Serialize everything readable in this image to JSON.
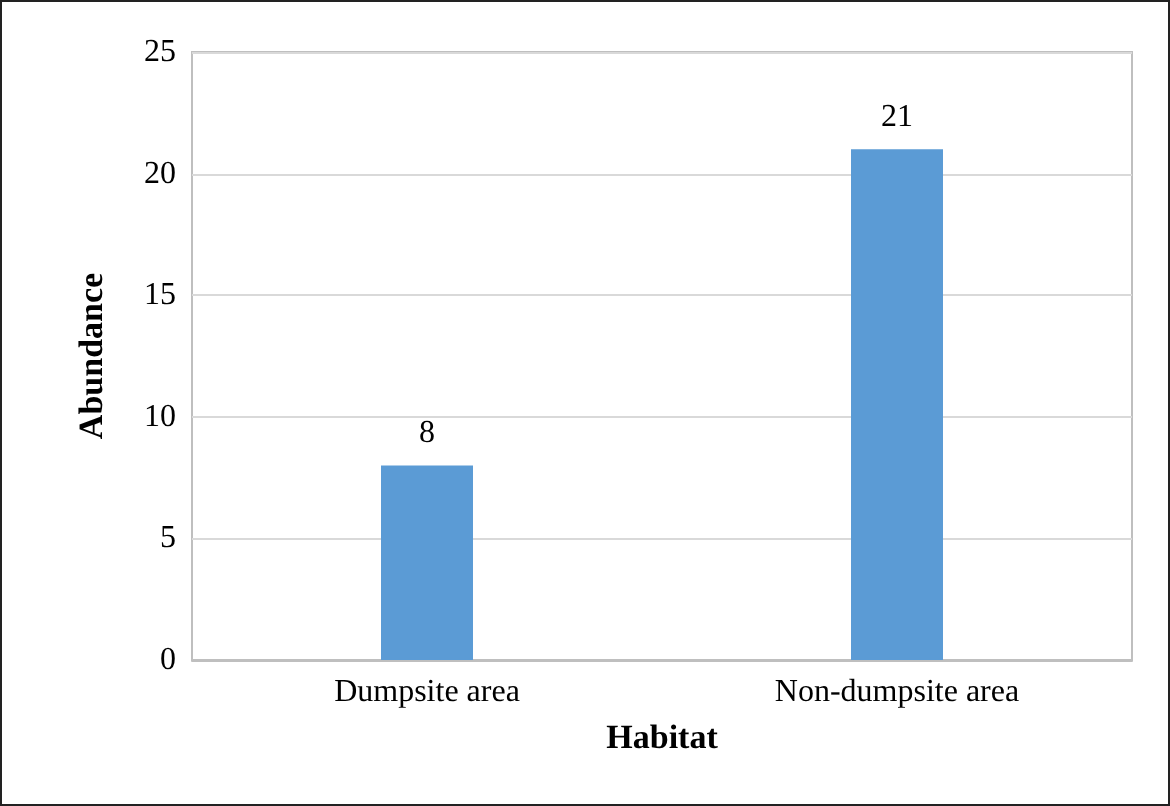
{
  "chart_data": {
    "type": "bar",
    "xlabel": "Habitat",
    "ylabel": "Abundance",
    "categories": [
      "Dumpsite area",
      "Non-dumpsite area"
    ],
    "values": [
      8,
      21
    ],
    "color": "#5b9bd5",
    "ylim": [
      0,
      25
    ],
    "yticks": [
      0,
      5,
      10,
      15,
      20,
      25
    ],
    "grid": "y",
    "data_labels": true
  }
}
